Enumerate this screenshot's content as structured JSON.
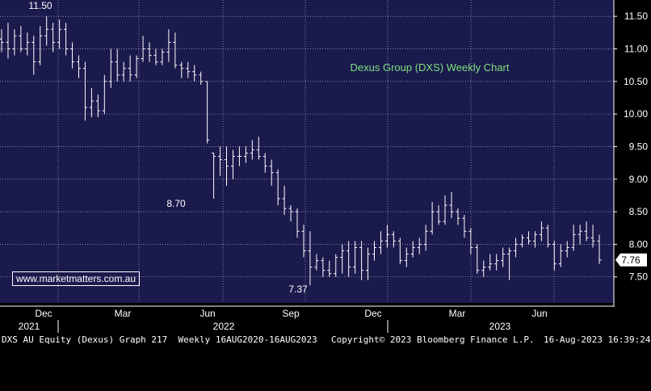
{
  "chart_data": {
    "type": "ohlc",
    "title": "Dexus Group (DXS) Weekly Chart",
    "ticker": "DXS AU Equity (Dexus)",
    "x_range": [
      "2020-11-16",
      "2023-08-16"
    ],
    "ylim": [
      7.1,
      11.75
    ],
    "y_ticks": [
      "7.50",
      "8.00",
      "8.50",
      "9.00",
      "9.50",
      "10.00",
      "10.50",
      "11.00",
      "11.50"
    ],
    "x_ticks": [
      "Dec",
      "Mar",
      "Jun",
      "Sep",
      "Dec",
      "Mar",
      "Jun"
    ],
    "year_labels": [
      "2021",
      "2022",
      "2023"
    ],
    "last_price_label": "7.76",
    "annotations": [
      "11.50",
      "8.70",
      "7.37"
    ],
    "grid": true,
    "series": [
      {
        "weekly_bars": [
          [
            11.15,
            11.3,
            10.95,
            11.1
          ],
          [
            11.1,
            11.4,
            10.85,
            11.0
          ],
          [
            11.0,
            11.3,
            10.9,
            11.2
          ],
          [
            11.2,
            11.35,
            10.95,
            11.0
          ],
          [
            11.0,
            11.25,
            10.9,
            11.1
          ],
          [
            11.1,
            11.2,
            10.6,
            10.8
          ],
          [
            10.8,
            11.35,
            10.75,
            11.2
          ],
          [
            11.2,
            11.5,
            11.05,
            11.3
          ],
          [
            11.3,
            11.4,
            10.95,
            11.1
          ],
          [
            11.1,
            11.45,
            11.0,
            11.3
          ],
          [
            11.3,
            11.4,
            10.9,
            11.0
          ],
          [
            11.0,
            11.1,
            10.7,
            10.8
          ],
          [
            10.8,
            10.9,
            10.55,
            10.7
          ],
          [
            10.7,
            10.8,
            9.9,
            10.1
          ],
          [
            10.1,
            10.4,
            9.95,
            10.2
          ],
          [
            10.2,
            10.3,
            9.95,
            10.05
          ],
          [
            10.05,
            10.6,
            10.0,
            10.5
          ],
          [
            10.5,
            11.0,
            10.4,
            10.8
          ],
          [
            10.8,
            11.0,
            10.5,
            10.6
          ],
          [
            10.6,
            10.8,
            10.5,
            10.7
          ],
          [
            10.7,
            10.9,
            10.5,
            10.6
          ],
          [
            10.6,
            10.9,
            10.55,
            10.85
          ],
          [
            10.85,
            11.2,
            10.8,
            11.0
          ],
          [
            11.0,
            11.1,
            10.8,
            10.9
          ],
          [
            10.9,
            11.0,
            10.75,
            10.8
          ],
          [
            10.8,
            11.0,
            10.75,
            10.95
          ],
          [
            10.95,
            11.3,
            10.8,
            11.1
          ],
          [
            11.1,
            11.25,
            10.7,
            10.75
          ],
          [
            10.75,
            10.8,
            10.55,
            10.7
          ],
          [
            10.7,
            10.8,
            10.55,
            10.65
          ],
          [
            10.65,
            10.75,
            10.5,
            10.6
          ],
          [
            10.6,
            10.65,
            10.45,
            10.5
          ],
          [
            10.5,
            10.5,
            9.55,
            9.6
          ],
          [
            9.4,
            9.4,
            8.7,
            9.35
          ],
          [
            9.35,
            9.5,
            9.05,
            9.3
          ],
          [
            9.3,
            9.5,
            8.9,
            9.2
          ],
          [
            9.2,
            9.45,
            9.0,
            9.35
          ],
          [
            9.35,
            9.5,
            9.2,
            9.35
          ],
          [
            9.35,
            9.5,
            9.25,
            9.4
          ],
          [
            9.4,
            9.6,
            9.3,
            9.45
          ],
          [
            9.45,
            9.65,
            9.3,
            9.35
          ],
          [
            9.35,
            9.4,
            9.1,
            9.2
          ],
          [
            9.2,
            9.3,
            8.9,
            9.1
          ],
          [
            9.1,
            9.15,
            8.6,
            8.7
          ],
          [
            8.7,
            8.9,
            8.45,
            8.55
          ],
          [
            8.55,
            8.6,
            8.35,
            8.5
          ],
          [
            8.5,
            8.55,
            8.1,
            8.2
          ],
          [
            8.2,
            8.3,
            7.8,
            7.9
          ],
          [
            7.9,
            8.2,
            7.37,
            7.65
          ],
          [
            7.65,
            7.85,
            7.6,
            7.75
          ],
          [
            7.75,
            7.8,
            7.5,
            7.6
          ],
          [
            7.6,
            7.75,
            7.5,
            7.55
          ],
          [
            7.55,
            7.85,
            7.5,
            7.8
          ],
          [
            7.8,
            8.0,
            7.55,
            7.9
          ],
          [
            7.9,
            8.05,
            7.5,
            7.65
          ],
          [
            7.65,
            8.05,
            7.55,
            7.95
          ],
          [
            7.95,
            8.05,
            7.45,
            7.6
          ],
          [
            7.6,
            7.95,
            7.45,
            7.85
          ],
          [
            7.85,
            8.05,
            7.75,
            7.95
          ],
          [
            7.95,
            8.2,
            7.85,
            8.05
          ],
          [
            8.05,
            8.3,
            7.95,
            8.15
          ],
          [
            8.15,
            8.2,
            7.95,
            8.05
          ],
          [
            8.05,
            8.1,
            7.7,
            7.75
          ],
          [
            7.75,
            7.95,
            7.65,
            7.85
          ],
          [
            7.85,
            8.05,
            7.8,
            7.95
          ],
          [
            7.95,
            8.1,
            7.85,
            8.0
          ],
          [
            8.0,
            8.3,
            7.9,
            8.2
          ],
          [
            8.2,
            8.65,
            8.15,
            8.5
          ],
          [
            8.5,
            8.6,
            8.3,
            8.35
          ],
          [
            8.35,
            8.75,
            8.3,
            8.6
          ],
          [
            8.6,
            8.8,
            8.4,
            8.5
          ],
          [
            8.5,
            8.55,
            8.3,
            8.4
          ],
          [
            8.4,
            8.45,
            8.1,
            8.2
          ],
          [
            8.2,
            8.25,
            7.85,
            7.95
          ],
          [
            7.95,
            8.0,
            7.55,
            7.6
          ],
          [
            7.6,
            7.75,
            7.5,
            7.65
          ],
          [
            7.65,
            7.85,
            7.6,
            7.7
          ],
          [
            7.7,
            7.85,
            7.6,
            7.75
          ],
          [
            7.75,
            7.95,
            7.65,
            7.85
          ],
          [
            7.85,
            7.95,
            7.45,
            7.9
          ],
          [
            7.9,
            8.1,
            7.8,
            8.0
          ],
          [
            8.0,
            8.15,
            7.95,
            8.1
          ],
          [
            8.1,
            8.2,
            8.0,
            8.05
          ],
          [
            8.05,
            8.2,
            7.95,
            8.15
          ],
          [
            8.15,
            8.35,
            8.05,
            8.25
          ],
          [
            8.25,
            8.3,
            7.95,
            8.0
          ],
          [
            8.0,
            8.05,
            7.6,
            7.7
          ],
          [
            7.7,
            8.0,
            7.65,
            7.9
          ],
          [
            7.9,
            8.05,
            7.8,
            7.95
          ],
          [
            7.95,
            8.3,
            7.9,
            8.15
          ],
          [
            8.15,
            8.3,
            8.0,
            8.2
          ],
          [
            8.2,
            8.35,
            8.05,
            8.1
          ],
          [
            8.1,
            8.3,
            7.95,
            8.05
          ],
          [
            8.05,
            8.15,
            7.7,
            7.76
          ]
        ]
      }
    ]
  },
  "watermark": "www.marketmatters.com.au",
  "footer": {
    "left": "DXS AU Equity (Dexus) Graph 217  Weekly 16AUG2020-16AUG2023",
    "center": "Copyright© 2023 Bloomberg Finance L.P.",
    "right": "16-Aug-2023 16:39:24"
  },
  "colors": {
    "plot_background": "#1a1a4d",
    "bar": "#ffffff",
    "grid": "#ffffff",
    "title": "#7fe07f",
    "axis_background": "#000000"
  }
}
